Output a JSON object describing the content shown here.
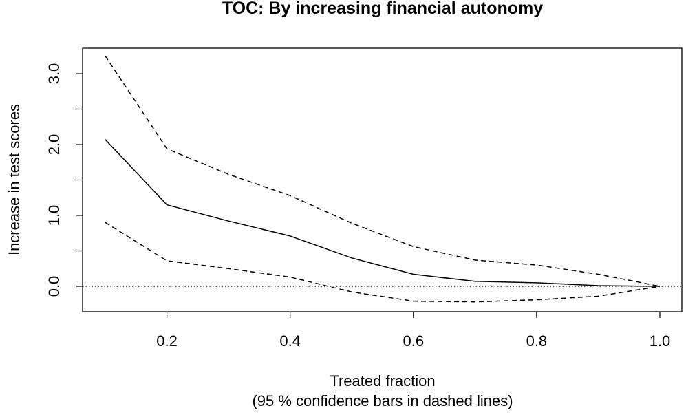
{
  "chart_data": {
    "type": "line",
    "title": "TOC: By increasing financial autonomy",
    "xlabel": "Treated fraction",
    "xlabel_sub": "(95 % confidence bars in dashed lines)",
    "ylabel": "Increase in test scores",
    "xlim": [
      0.1,
      1.0
    ],
    "ylim": [
      -0.35,
      3.25
    ],
    "x_ticks": [
      0.2,
      0.4,
      0.6,
      0.8,
      1.0
    ],
    "x_tick_labels": [
      "0.2",
      "0.4",
      "0.6",
      "0.8",
      "1.0"
    ],
    "y_ticks": [
      0.0,
      0.5,
      1.0,
      1.5,
      2.0,
      2.5,
      3.0
    ],
    "y_tick_labels": [
      "0.0",
      "",
      "1.0",
      "",
      "2.0",
      "",
      "3.0"
    ],
    "grid": false,
    "reference_line": {
      "y": 0.0,
      "style": "dotted"
    },
    "x": [
      0.1,
      0.2,
      0.3,
      0.4,
      0.5,
      0.6,
      0.7,
      0.8,
      0.9,
      1.0
    ],
    "series": [
      {
        "style": "solid",
        "values": [
          2.07,
          1.15,
          0.92,
          0.71,
          0.4,
          0.17,
          0.07,
          0.05,
          0.01,
          0.0
        ]
      },
      {
        "style": "dashed",
        "values": [
          3.25,
          1.94,
          1.58,
          1.28,
          0.89,
          0.56,
          0.37,
          0.3,
          0.17,
          0.0
        ]
      },
      {
        "style": "dashed",
        "values": [
          0.9,
          0.36,
          0.25,
          0.13,
          -0.08,
          -0.21,
          -0.22,
          -0.19,
          -0.14,
          0.0
        ]
      }
    ],
    "colors": {
      "line": "#000000",
      "axis": "#000000",
      "background": "#ffffff"
    }
  }
}
